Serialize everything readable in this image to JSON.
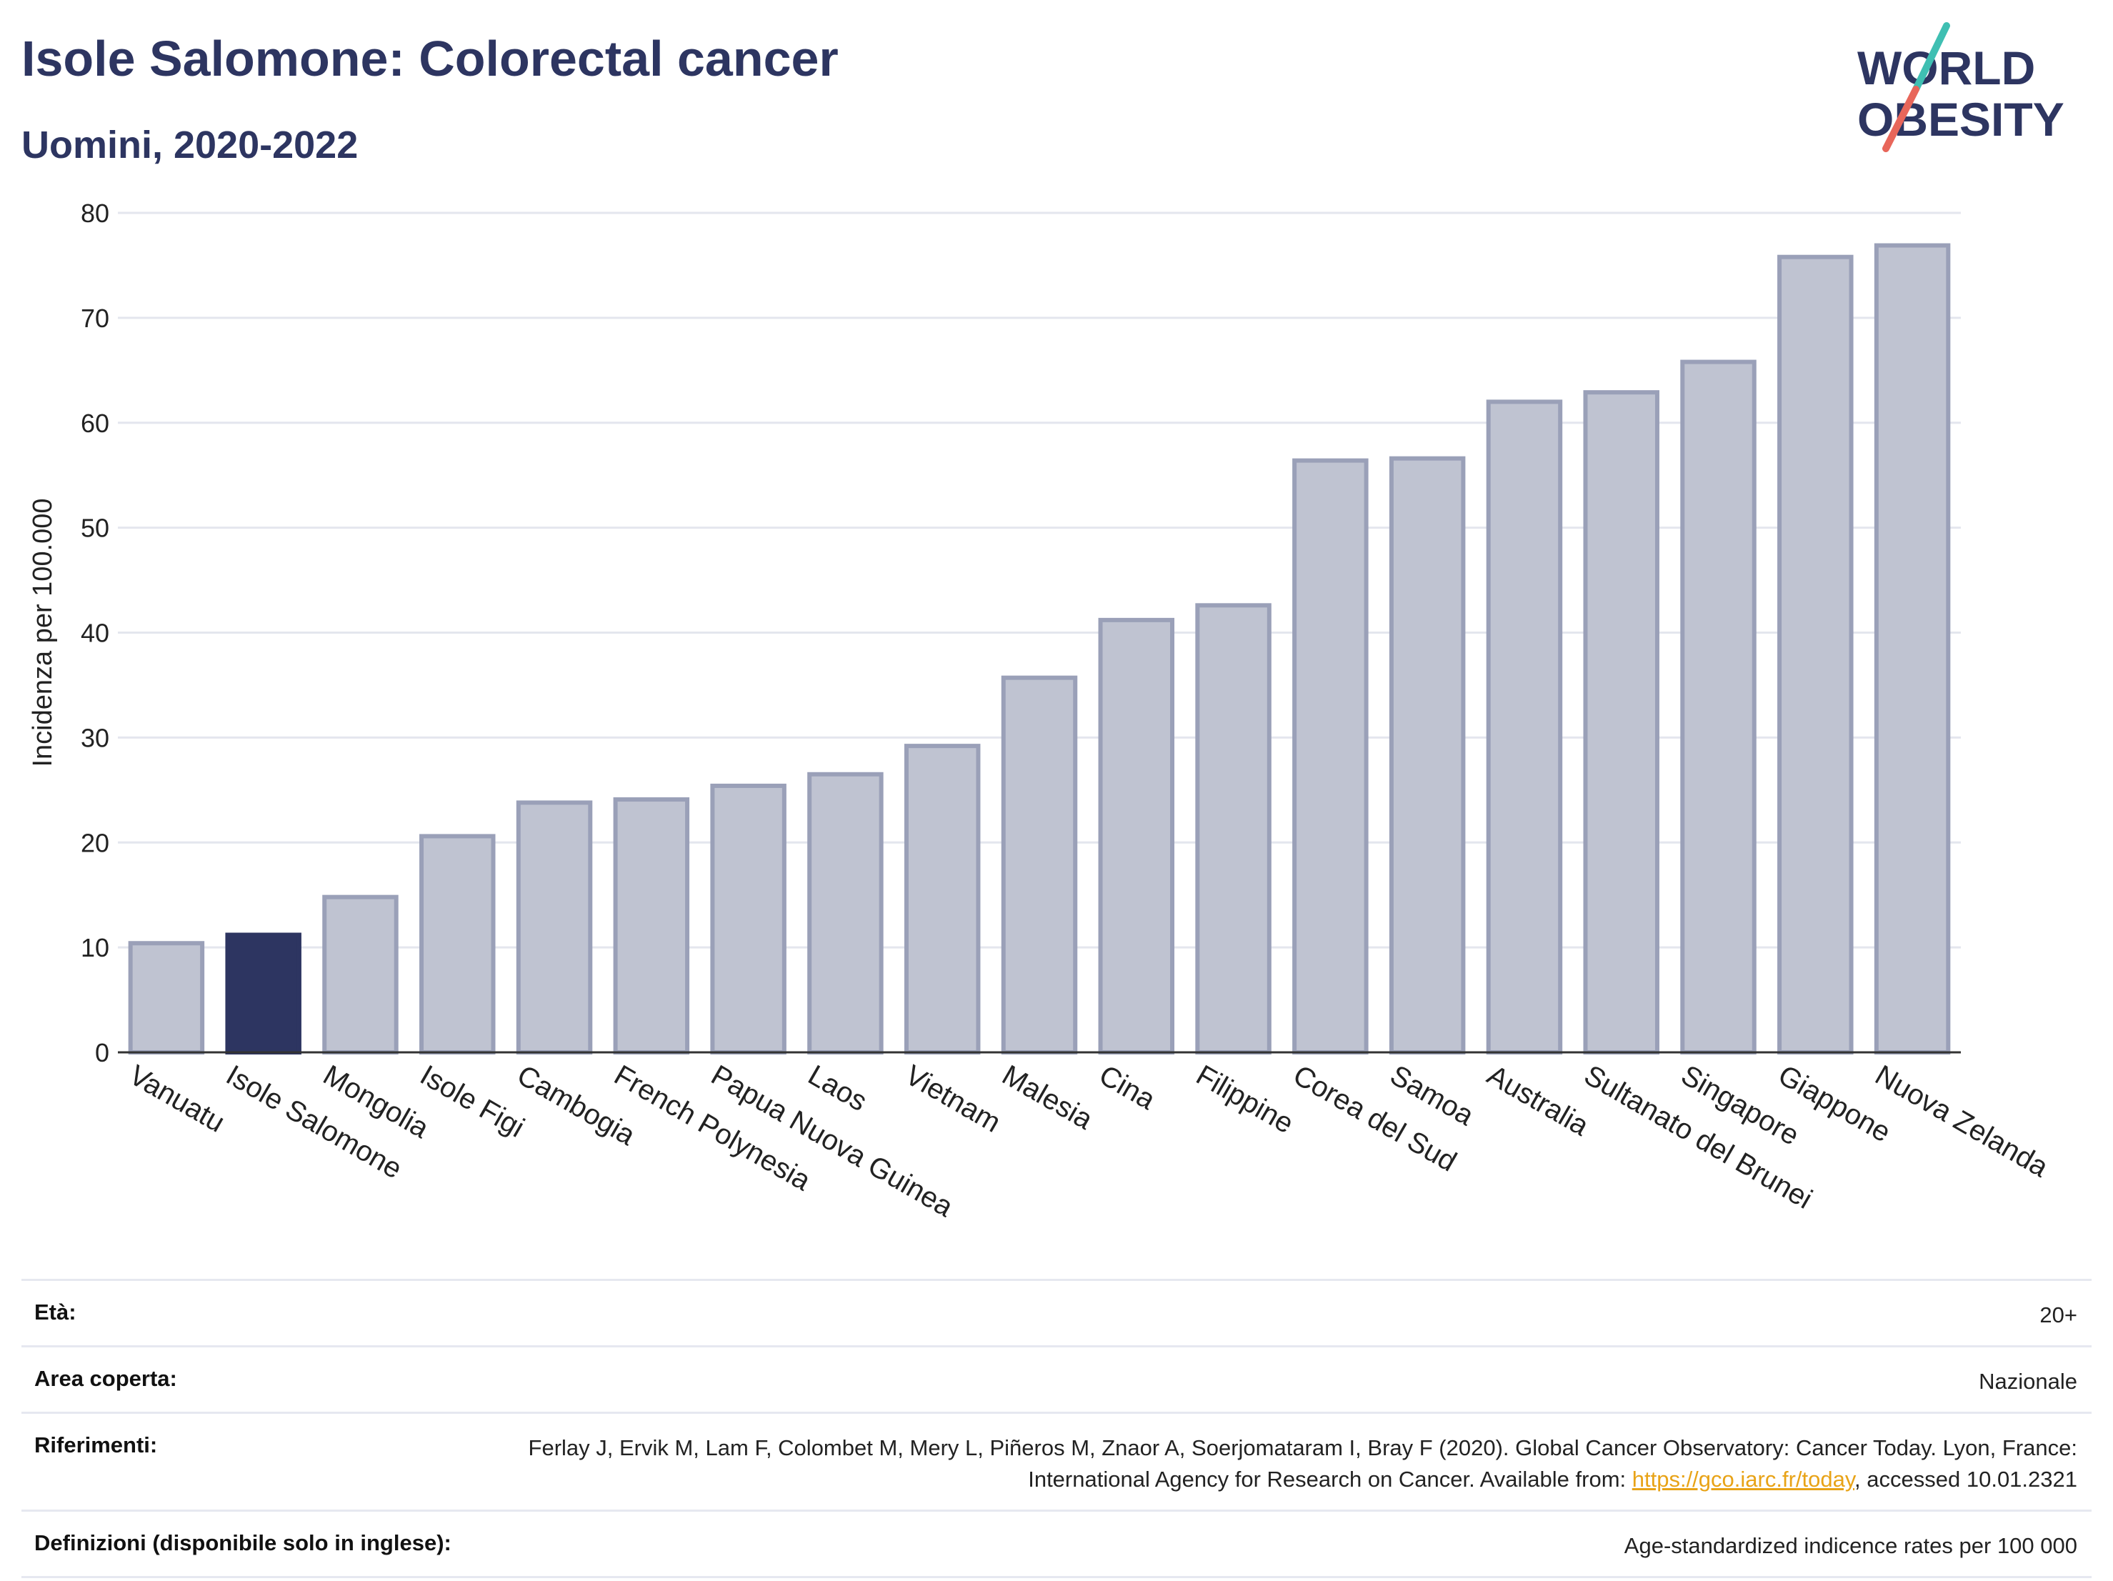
{
  "header": {
    "title": "Isole Salomone: Colorectal cancer",
    "subtitle": "Uomini, 2020-2022"
  },
  "logo": {
    "line1": "WORLD",
    "line2": "OBESITY"
  },
  "colors": {
    "highlight": "#2d3561",
    "bar": "#bfc3d1",
    "bar_stroke": "#9aa0b8",
    "title": "#2d3561"
  },
  "chart_data": {
    "type": "bar",
    "ylabel": "Incidenza per 100.000",
    "ylim": [
      0,
      80
    ],
    "yticks": [
      0,
      10,
      20,
      30,
      40,
      50,
      60,
      70,
      80
    ],
    "grid": true,
    "highlight": "Isole Salomone",
    "categories": [
      "Vanuatu",
      "Isole Salomone",
      "Mongolia",
      "Isole Figi",
      "Cambogia",
      "French Polynesia",
      "Papua Nuova Guinea",
      "Laos",
      "Vietnam",
      "Malesia",
      "Cina",
      "Filippine",
      "Corea del Sud",
      "Samoa",
      "Australia",
      "Sultanato del Brunei",
      "Singapore",
      "Giappone",
      "Nuova Zelanda"
    ],
    "values": [
      10.4,
      11.2,
      14.8,
      20.6,
      23.8,
      24.1,
      25.4,
      26.5,
      29.2,
      35.7,
      41.2,
      42.6,
      56.4,
      56.6,
      62.0,
      62.9,
      65.8,
      75.8,
      76.9
    ]
  },
  "info": {
    "age_label": "Età:",
    "age_value": "20+",
    "area_label": "Area coperta:",
    "area_value": "Nazionale",
    "ref_label": "Riferimenti:",
    "ref_text_1": "Ferlay J, Ervik M, Lam F, Colombet M, Mery L, Piñeros M, Znaor A, Soerjomataram I, Bray F (2020). Global Cancer Observatory: Cancer Today. Lyon, France: International Agency for Research on Cancer. Available from: ",
    "ref_link": "https://gco.iarc.fr/today",
    "ref_text_2": ", accessed 10.01.2321",
    "def_label": "Definizioni (disponibile solo in inglese):",
    "def_value": "Age-standardized indicence rates per 100 000"
  }
}
